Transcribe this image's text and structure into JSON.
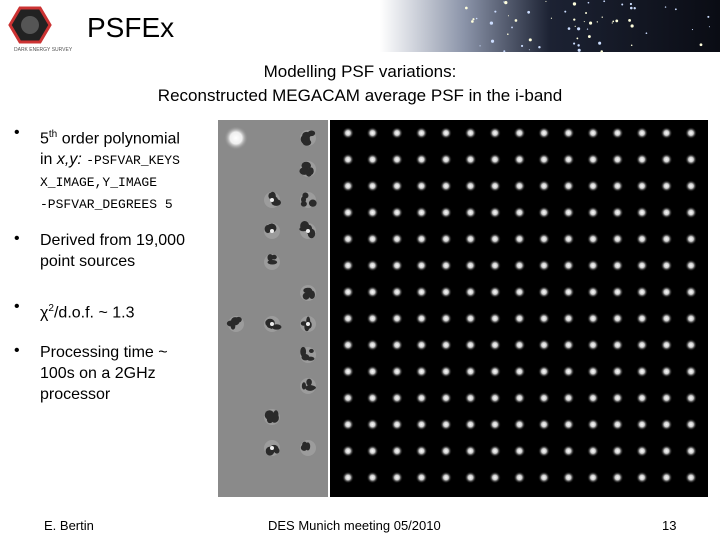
{
  "header": {
    "logo_text": "DARK ENERGY SURVEY",
    "title": "PSFEx"
  },
  "subtitle": [
    "Modelling PSF variations:",
    "Reconstructed MEGACAM average PSF in the i-band"
  ],
  "bullets": [
    {
      "base": "5",
      "sup": "th",
      "text": " order polynomial",
      "line2": "in ",
      "italic": "x,y:",
      "code": [
        "-PSFVAR_KEYS",
        "X_IMAGE,Y_IMAGE",
        "-PSFVAR_DEGREES 5"
      ]
    },
    {
      "lines": [
        "Derived from 19,000",
        "point sources"
      ]
    },
    {
      "symbol": "χ",
      "sup": "2",
      "text": "/d.o.f. ~ 1.3"
    },
    {
      "lines": [
        "Processing time ~",
        "100s on a 2GHz",
        "processor"
      ]
    }
  ],
  "footer": {
    "author": "E. Bertin",
    "event": "DES Munich meeting 05/2010",
    "page": "13"
  }
}
